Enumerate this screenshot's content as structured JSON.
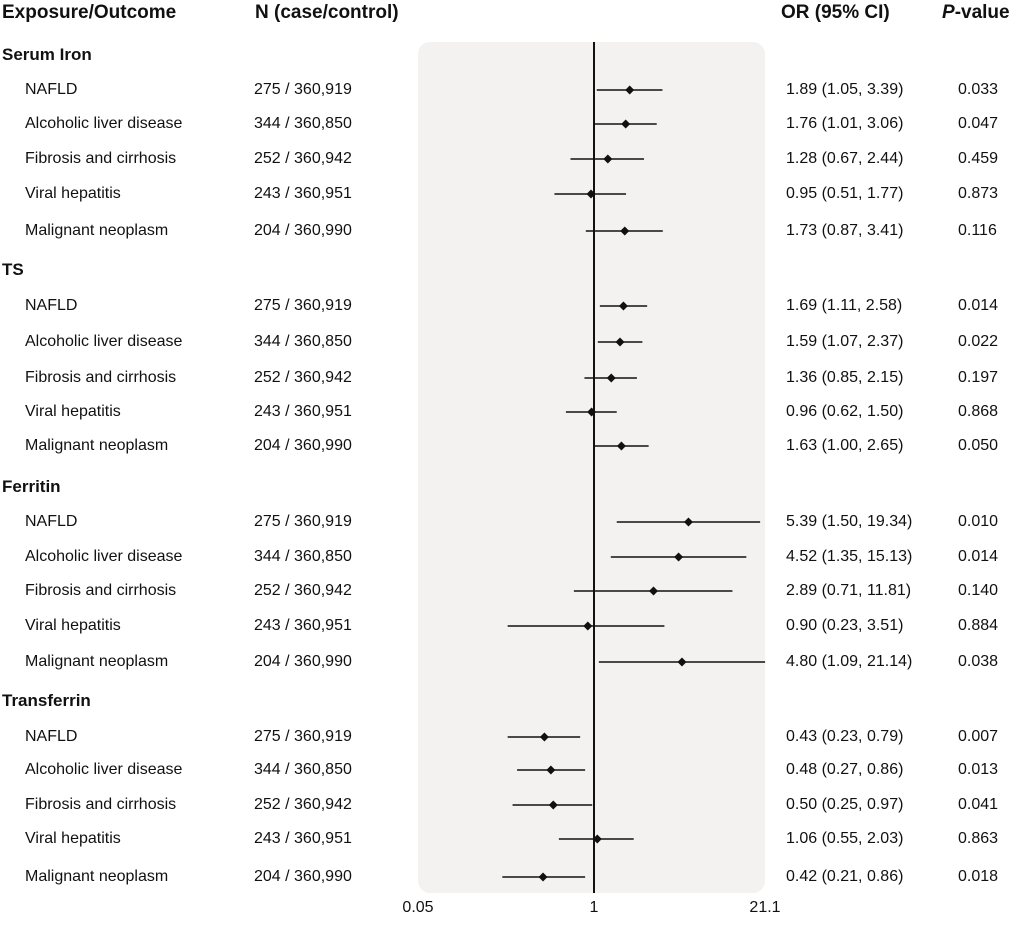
{
  "headers": {
    "exposure": "Exposure/Outcome",
    "n": "N (case/control)",
    "or": "OR (95% CI)",
    "p_prefix": "P",
    "p_suffix": "-value"
  },
  "chart_data": {
    "type": "forest",
    "xscale": "log",
    "xlim": [
      0.05,
      21.1
    ],
    "reference_line": 1,
    "tick_labels": [
      "0.05",
      "1",
      "21.1"
    ],
    "tick_values": [
      0.05,
      1,
      21.1
    ],
    "groups": [
      {
        "name": "Serum Iron",
        "rows": [
          {
            "outcome": "NAFLD",
            "n": "275 / 360,919",
            "or": 1.89,
            "lo": 1.05,
            "hi": 3.39,
            "or_text": "1.89 (1.05, 3.39)",
            "p": "0.033"
          },
          {
            "outcome": "Alcoholic liver disease",
            "n": "344 / 360,850",
            "or": 1.76,
            "lo": 1.01,
            "hi": 3.06,
            "or_text": "1.76 (1.01, 3.06)",
            "p": "0.047"
          },
          {
            "outcome": "Fibrosis and cirrhosis",
            "n": "252 / 360,942",
            "or": 1.28,
            "lo": 0.67,
            "hi": 2.44,
            "or_text": "1.28 (0.67, 2.44)",
            "p": "0.459"
          },
          {
            "outcome": "Viral hepatitis",
            "n": "243 / 360,951",
            "or": 0.95,
            "lo": 0.51,
            "hi": 1.77,
            "or_text": "0.95 (0.51, 1.77)",
            "p": "0.873"
          },
          {
            "outcome": "Malignant neoplasm",
            "n": "204 / 360,990",
            "or": 1.73,
            "lo": 0.87,
            "hi": 3.41,
            "or_text": "1.73 (0.87, 3.41)",
            "p": "0.116"
          }
        ]
      },
      {
        "name": "TS",
        "rows": [
          {
            "outcome": "NAFLD",
            "n": "275 / 360,919",
            "or": 1.69,
            "lo": 1.11,
            "hi": 2.58,
            "or_text": "1.69 (1.11, 2.58)",
            "p": "0.014"
          },
          {
            "outcome": "Alcoholic liver disease",
            "n": "344 / 360,850",
            "or": 1.59,
            "lo": 1.07,
            "hi": 2.37,
            "or_text": "1.59 (1.07, 2.37)",
            "p": "0.022"
          },
          {
            "outcome": "Fibrosis and cirrhosis",
            "n": "252 / 360,942",
            "or": 1.36,
            "lo": 0.85,
            "hi": 2.15,
            "or_text": "1.36 (0.85, 2.15)",
            "p": "0.197"
          },
          {
            "outcome": "Viral hepatitis",
            "n": "243 / 360,951",
            "or": 0.96,
            "lo": 0.62,
            "hi": 1.5,
            "or_text": "0.96 (0.62, 1.50)",
            "p": "0.868"
          },
          {
            "outcome": "Malignant neoplasm",
            "n": "204 / 360,990",
            "or": 1.63,
            "lo": 1.0,
            "hi": 2.65,
            "or_text": "1.63 (1.00, 2.65)",
            "p": "0.050"
          }
        ]
      },
      {
        "name": "Ferritin",
        "rows": [
          {
            "outcome": "NAFLD",
            "n": "275 / 360,919",
            "or": 5.39,
            "lo": 1.5,
            "hi": 19.34,
            "or_text": "5.39 (1.50, 19.34)",
            "p": "0.010"
          },
          {
            "outcome": "Alcoholic liver disease",
            "n": "344 / 360,850",
            "or": 4.52,
            "lo": 1.35,
            "hi": 15.13,
            "or_text": "4.52 (1.35, 15.13)",
            "p": "0.014"
          },
          {
            "outcome": "Fibrosis and cirrhosis",
            "n": "252 / 360,942",
            "or": 2.89,
            "lo": 0.71,
            "hi": 11.81,
            "or_text": "2.89 (0.71, 11.81)",
            "p": "0.140"
          },
          {
            "outcome": "Viral hepatitis",
            "n": "243 / 360,951",
            "or": 0.9,
            "lo": 0.23,
            "hi": 3.51,
            "or_text": "0.90 (0.23, 3.51)",
            "p": "0.884"
          },
          {
            "outcome": "Malignant neoplasm",
            "n": "204 / 360,990",
            "or": 4.8,
            "lo": 1.09,
            "hi": 21.14,
            "or_text": "4.80 (1.09, 21.14)",
            "p": "0.038"
          }
        ]
      },
      {
        "name": "Transferrin",
        "rows": [
          {
            "outcome": "NAFLD",
            "n": "275 / 360,919",
            "or": 0.43,
            "lo": 0.23,
            "hi": 0.79,
            "or_text": "0.43 (0.23, 0.79)",
            "p": "0.007"
          },
          {
            "outcome": "Alcoholic liver disease",
            "n": "344 / 360,850",
            "or": 0.48,
            "lo": 0.27,
            "hi": 0.86,
            "or_text": "0.48 (0.27, 0.86)",
            "p": "0.013"
          },
          {
            "outcome": "Fibrosis and cirrhosis",
            "n": "252 / 360,942",
            "or": 0.5,
            "lo": 0.25,
            "hi": 0.97,
            "or_text": "0.50 (0.25, 0.97)",
            "p": "0.041"
          },
          {
            "outcome": "Viral hepatitis",
            "n": "243 / 360,951",
            "or": 1.06,
            "lo": 0.55,
            "hi": 2.03,
            "or_text": "1.06 (0.55, 2.03)",
            "p": "0.863"
          },
          {
            "outcome": "Malignant neoplasm",
            "n": "204 / 360,990",
            "or": 0.42,
            "lo": 0.21,
            "hi": 0.86,
            "or_text": "0.42 (0.21, 0.86)",
            "p": "0.018"
          }
        ]
      }
    ]
  }
}
